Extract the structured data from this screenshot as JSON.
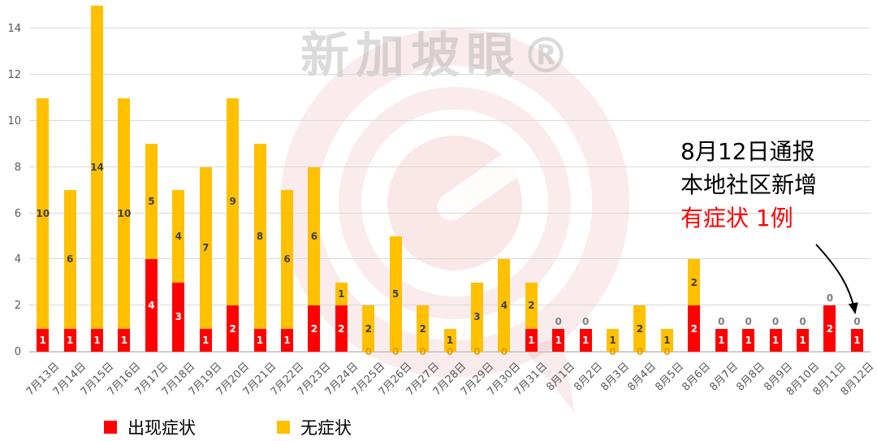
{
  "watermark": {
    "brand": "新加坡眼®"
  },
  "chart_data": {
    "type": "bar",
    "stacked": true,
    "title": "",
    "xlabel": "",
    "ylabel": "",
    "categories": [
      "7月13日",
      "7月14日",
      "7月15日",
      "7月16日",
      "7月17日",
      "7月18日",
      "7月19日",
      "7月20日",
      "7月21日",
      "7月22日",
      "7月23日",
      "7月24日",
      "7月25日",
      "7月26日",
      "7月27日",
      "7月28日",
      "7月29日",
      "7月30日",
      "7月31日",
      "8月1日",
      "8月2日",
      "8月3日",
      "8月4日",
      "8月5日",
      "8月6日",
      "8月7日",
      "8月8日",
      "8月9日",
      "8月10日",
      "8月11日",
      "8月12日"
    ],
    "series": [
      {
        "name": "出现症状",
        "color": "#FF0000",
        "values": [
          1,
          1,
          1,
          1,
          4,
          3,
          1,
          2,
          1,
          1,
          2,
          2,
          0,
          0,
          0,
          0,
          0,
          0,
          1,
          1,
          1,
          0,
          0,
          0,
          2,
          1,
          1,
          1,
          1,
          2,
          1
        ]
      },
      {
        "name": "无症状",
        "color": "#FFC000",
        "values": [
          10,
          6,
          14,
          10,
          5,
          4,
          7,
          9,
          8,
          6,
          6,
          1,
          2,
          5,
          2,
          1,
          3,
          4,
          2,
          0,
          0,
          1,
          2,
          1,
          2,
          0,
          0,
          0,
          0,
          0,
          0
        ]
      }
    ],
    "ylim": [
      0,
      15
    ],
    "yticks": [
      0,
      2,
      4,
      6,
      8,
      10,
      12,
      14
    ],
    "grid": true,
    "legend_position": "bottom",
    "label_colors": {
      "in_red": "#FFFFFF",
      "in_yellow": "#3F3F3F",
      "zero_bottom": "#E8A000",
      "zero_top": "#7F7F7F"
    }
  },
  "annotation": {
    "line1": "8月12日通报",
    "line2": "本地社区新增",
    "line3": "有症状 1例",
    "highlight_color": "#FF0000"
  }
}
